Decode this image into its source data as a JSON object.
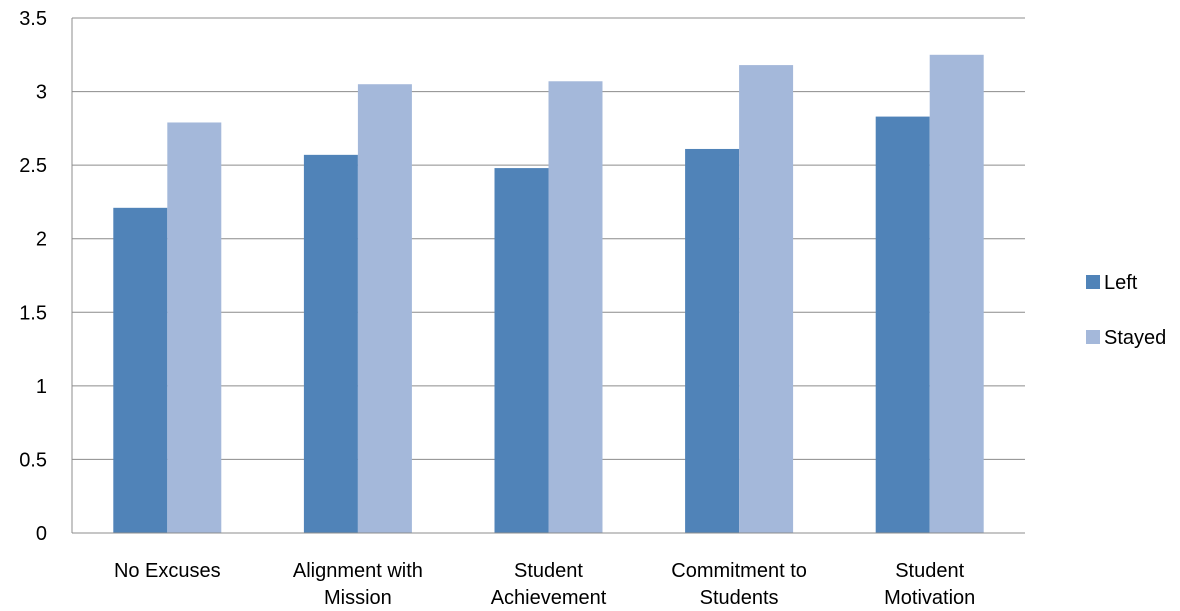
{
  "chart_data": {
    "type": "bar",
    "title": "",
    "xlabel": "",
    "ylabel": "",
    "categories": [
      [
        "No Excuses"
      ],
      [
        "Alignment with",
        "Mission"
      ],
      [
        "Student",
        "Achievement"
      ],
      [
        "Commitment to",
        "Students"
      ],
      [
        "Student",
        "Motivation"
      ]
    ],
    "series": [
      {
        "name": "Left",
        "color": "#5083b8",
        "values": [
          2.21,
          2.57,
          2.48,
          2.61,
          2.83
        ]
      },
      {
        "name": "Stayed",
        "color": "#a4b8da",
        "values": [
          2.79,
          3.05,
          3.07,
          3.18,
          3.25
        ]
      }
    ],
    "ylim": [
      0,
      3.5
    ],
    "yticks": [
      "0",
      "0.5",
      "1",
      "1.5",
      "2",
      "2.5",
      "3",
      "3.5"
    ],
    "grid": true,
    "legend": "right"
  }
}
